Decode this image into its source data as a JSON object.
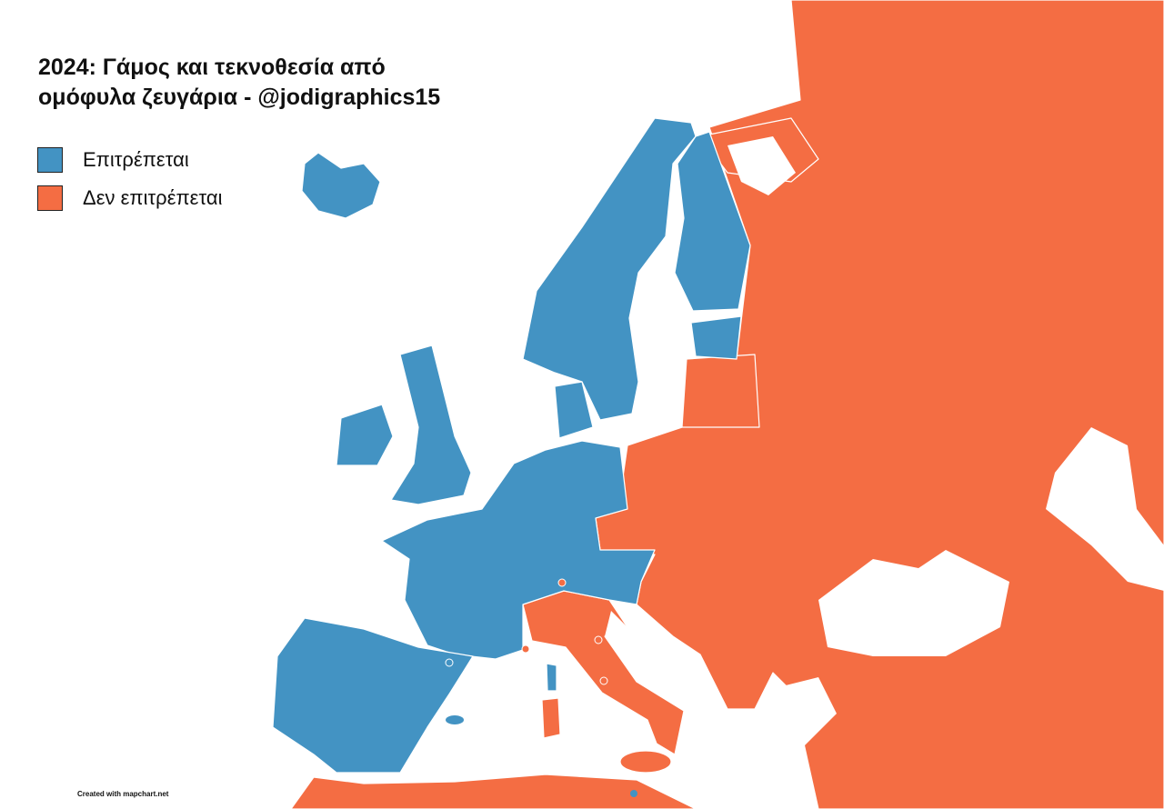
{
  "title": {
    "line1": "2024: Γάμος και τεκνοθεσία από",
    "line2": "ομόφυλα ζευγάρια - @jodigraphics15"
  },
  "legend": [
    {
      "label": "Επιτρέπεται",
      "color": "#4393c3"
    },
    {
      "label": "Δεν επιτρέπεται",
      "color": "#f46d43"
    }
  ],
  "credit": "Created with mapchart.net",
  "colors": {
    "allowed": "#4393c3",
    "not_allowed": "#f46d43",
    "sea": "#ffffff",
    "border": "#ffffff"
  }
}
